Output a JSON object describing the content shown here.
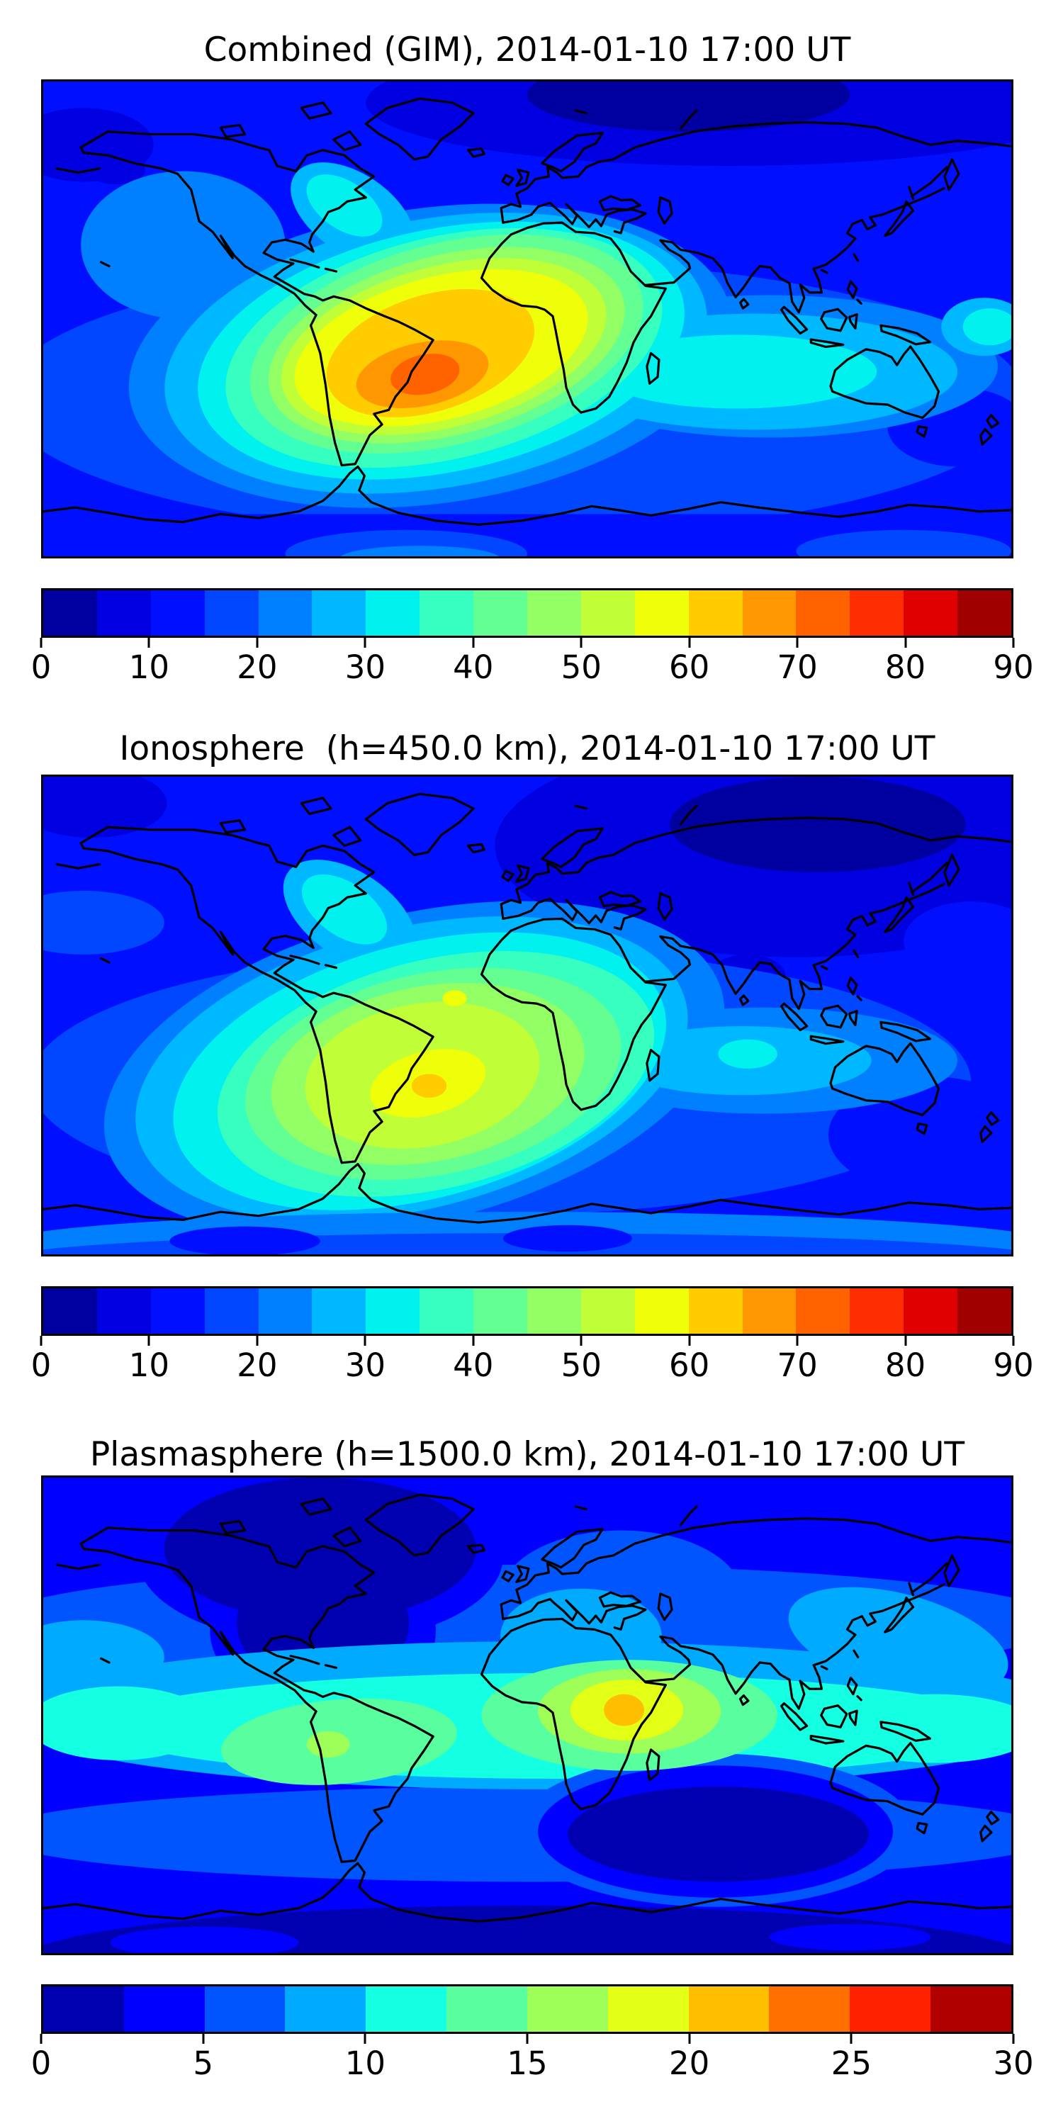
{
  "panels": [
    {
      "title": "Combined (GIM), 2014-01-10 17:00 UT",
      "colorbar": {
        "min": 0,
        "max": 90,
        "tick_labels": [
          "0",
          "10",
          "20",
          "30",
          "40",
          "50",
          "60",
          "70",
          "80",
          "90"
        ],
        "num_segments": 18,
        "level_step": 5,
        "segment_colors": [
          "#0000a0",
          "#0000e0",
          "#0010ff",
          "#0047ff",
          "#0080ff",
          "#00b8ff",
          "#00f1ee",
          "#37ffc0",
          "#64ff92",
          "#92ff65",
          "#c0ff37",
          "#eeff09",
          "#ffcc00",
          "#ff9700",
          "#ff6300",
          "#ff2e00",
          "#e00000",
          "#a00000"
        ]
      }
    },
    {
      "title": "Ionosphere  (h=450.0 km), 2014-01-10 17:00 UT",
      "colorbar": {
        "min": 0,
        "max": 90,
        "tick_labels": [
          "0",
          "10",
          "20",
          "30",
          "40",
          "50",
          "60",
          "70",
          "80",
          "90"
        ],
        "num_segments": 18,
        "level_step": 5,
        "segment_colors": [
          "#0000a0",
          "#0000e0",
          "#0010ff",
          "#0047ff",
          "#0080ff",
          "#00b8ff",
          "#00f1ee",
          "#37ffc0",
          "#64ff92",
          "#92ff65",
          "#c0ff37",
          "#eeff09",
          "#ffcc00",
          "#ff9700",
          "#ff6300",
          "#ff2e00",
          "#e00000",
          "#a00000"
        ]
      }
    },
    {
      "title": "Plasmasphere (h=1500.0 km), 2014-01-10 17:00 UT",
      "colorbar": {
        "min": 0,
        "max": 30,
        "tick_labels": [
          "0",
          "5",
          "10",
          "15",
          "20",
          "25",
          "30"
        ],
        "num_segments": 12,
        "level_step": 2.5,
        "segment_colors": [
          "#0000b0",
          "#0000ff",
          "#0055ff",
          "#00aaff",
          "#15ffe2",
          "#59ff9e",
          "#9eff59",
          "#e2ff15",
          "#ffbe00",
          "#ff7000",
          "#ff2100",
          "#b00000"
        ]
      }
    }
  ],
  "chart_data": [
    {
      "type": "heatmap",
      "subtype": "filled_contour_world_map",
      "title": "Combined (GIM), 2014-01-10 17:00 UT",
      "colormap": "jet",
      "projection": "equirectangular, lon -180..180, lat 90..-90, black coastlines",
      "value_range": [
        0,
        90
      ],
      "contour_levels": [
        0,
        5,
        10,
        15,
        20,
        25,
        30,
        35,
        40,
        45,
        50,
        55,
        60,
        65,
        70,
        75,
        80,
        85,
        90
      ],
      "colorbar_ticks": [
        0,
        10,
        20,
        30,
        40,
        50,
        60,
        70,
        80,
        90
      ],
      "legend_position": "horizontal colorbar below map",
      "peak": {
        "approx_lon": -45,
        "approx_lat": -27,
        "approx_value": "70-75",
        "description": "orange-red maximum over southeastern South America / South Atlantic"
      },
      "minimum": {
        "region": "northern Eurasia / Arctic (night side)",
        "approx_value": "0-5"
      },
      "features": [
        "large yellow-orange daytime enhancement covering South America, tropical Atlantic and western Africa (values 45-75)",
        "cyan band 25-35 across Indian Ocean near lat -20",
        "blue background 10-20 over Pacific and high latitudes",
        "cyan tongue 25-35 extending northeast over the North Atlantic"
      ]
    },
    {
      "type": "heatmap",
      "subtype": "filled_contour_world_map",
      "title": "Ionosphere  (h=450.0 km), 2014-01-10 17:00 UT",
      "colormap": "jet",
      "projection": "equirectangular, lon -180..180, lat 90..-90, black coastlines",
      "value_range": [
        0,
        90
      ],
      "contour_levels": [
        0,
        5,
        10,
        15,
        20,
        25,
        30,
        35,
        40,
        45,
        50,
        55,
        60,
        65,
        70,
        75,
        80,
        85,
        90
      ],
      "colorbar_ticks": [
        0,
        10,
        20,
        30,
        40,
        50,
        60,
        70,
        80,
        90
      ],
      "legend_position": "horizontal colorbar below map",
      "peak": {
        "approx_lon": -47,
        "approx_lat": -26,
        "approx_value": "60-65",
        "description": "small gold core near the southern Brazil coast"
      },
      "minimum": {
        "region": "Asia / eastern Europe (night side)",
        "approx_value": "0-10"
      },
      "features": [
        "yellow-green enhancement 35-60 centered on South America and South Atlantic",
        "large dark blue region < 10 over Eurasia",
        "cyan patch 25-35 in central Indian Ocean",
        "blue 10-20 elsewhere"
      ]
    },
    {
      "type": "heatmap",
      "subtype": "filled_contour_world_map",
      "title": "Plasmasphere (h=1500.0 km), 2014-01-10 17:00 UT",
      "colormap": "jet",
      "projection": "equirectangular, lon -180..180, lat 90..-90, black coastlines",
      "value_range": [
        0,
        30
      ],
      "contour_levels": [
        0,
        2.5,
        5,
        7.5,
        10,
        12.5,
        15,
        17.5,
        20,
        22.5,
        25,
        27.5,
        30
      ],
      "colorbar_ticks": [
        0,
        5,
        10,
        15,
        20,
        25,
        30
      ],
      "legend_position": "horizontal colorbar below map",
      "peak": {
        "approx_lon": 33,
        "approx_lat": -2,
        "approx_value": "17.5-20",
        "description": "orange-gold maximum over East Africa"
      },
      "secondary_peak": {
        "approx_lon": -74,
        "approx_lat": -11,
        "approx_value": "12.5-15",
        "description": "small yellow-green spot near Peru"
      },
      "minimum": {
        "region": "North America and south of Indian Ocean / polar caps",
        "approx_value": "0-2.5"
      },
      "features": [
        "zonally banded structure following the geomagnetic equator",
        "cyan-green equatorial band 10-15 spanning all longitudes",
        "dark navy wedge < 2.5 over North America",
        "dark navy region < 2.5 south of Africa / Indian Ocean and over Antarctica"
      ]
    }
  ]
}
